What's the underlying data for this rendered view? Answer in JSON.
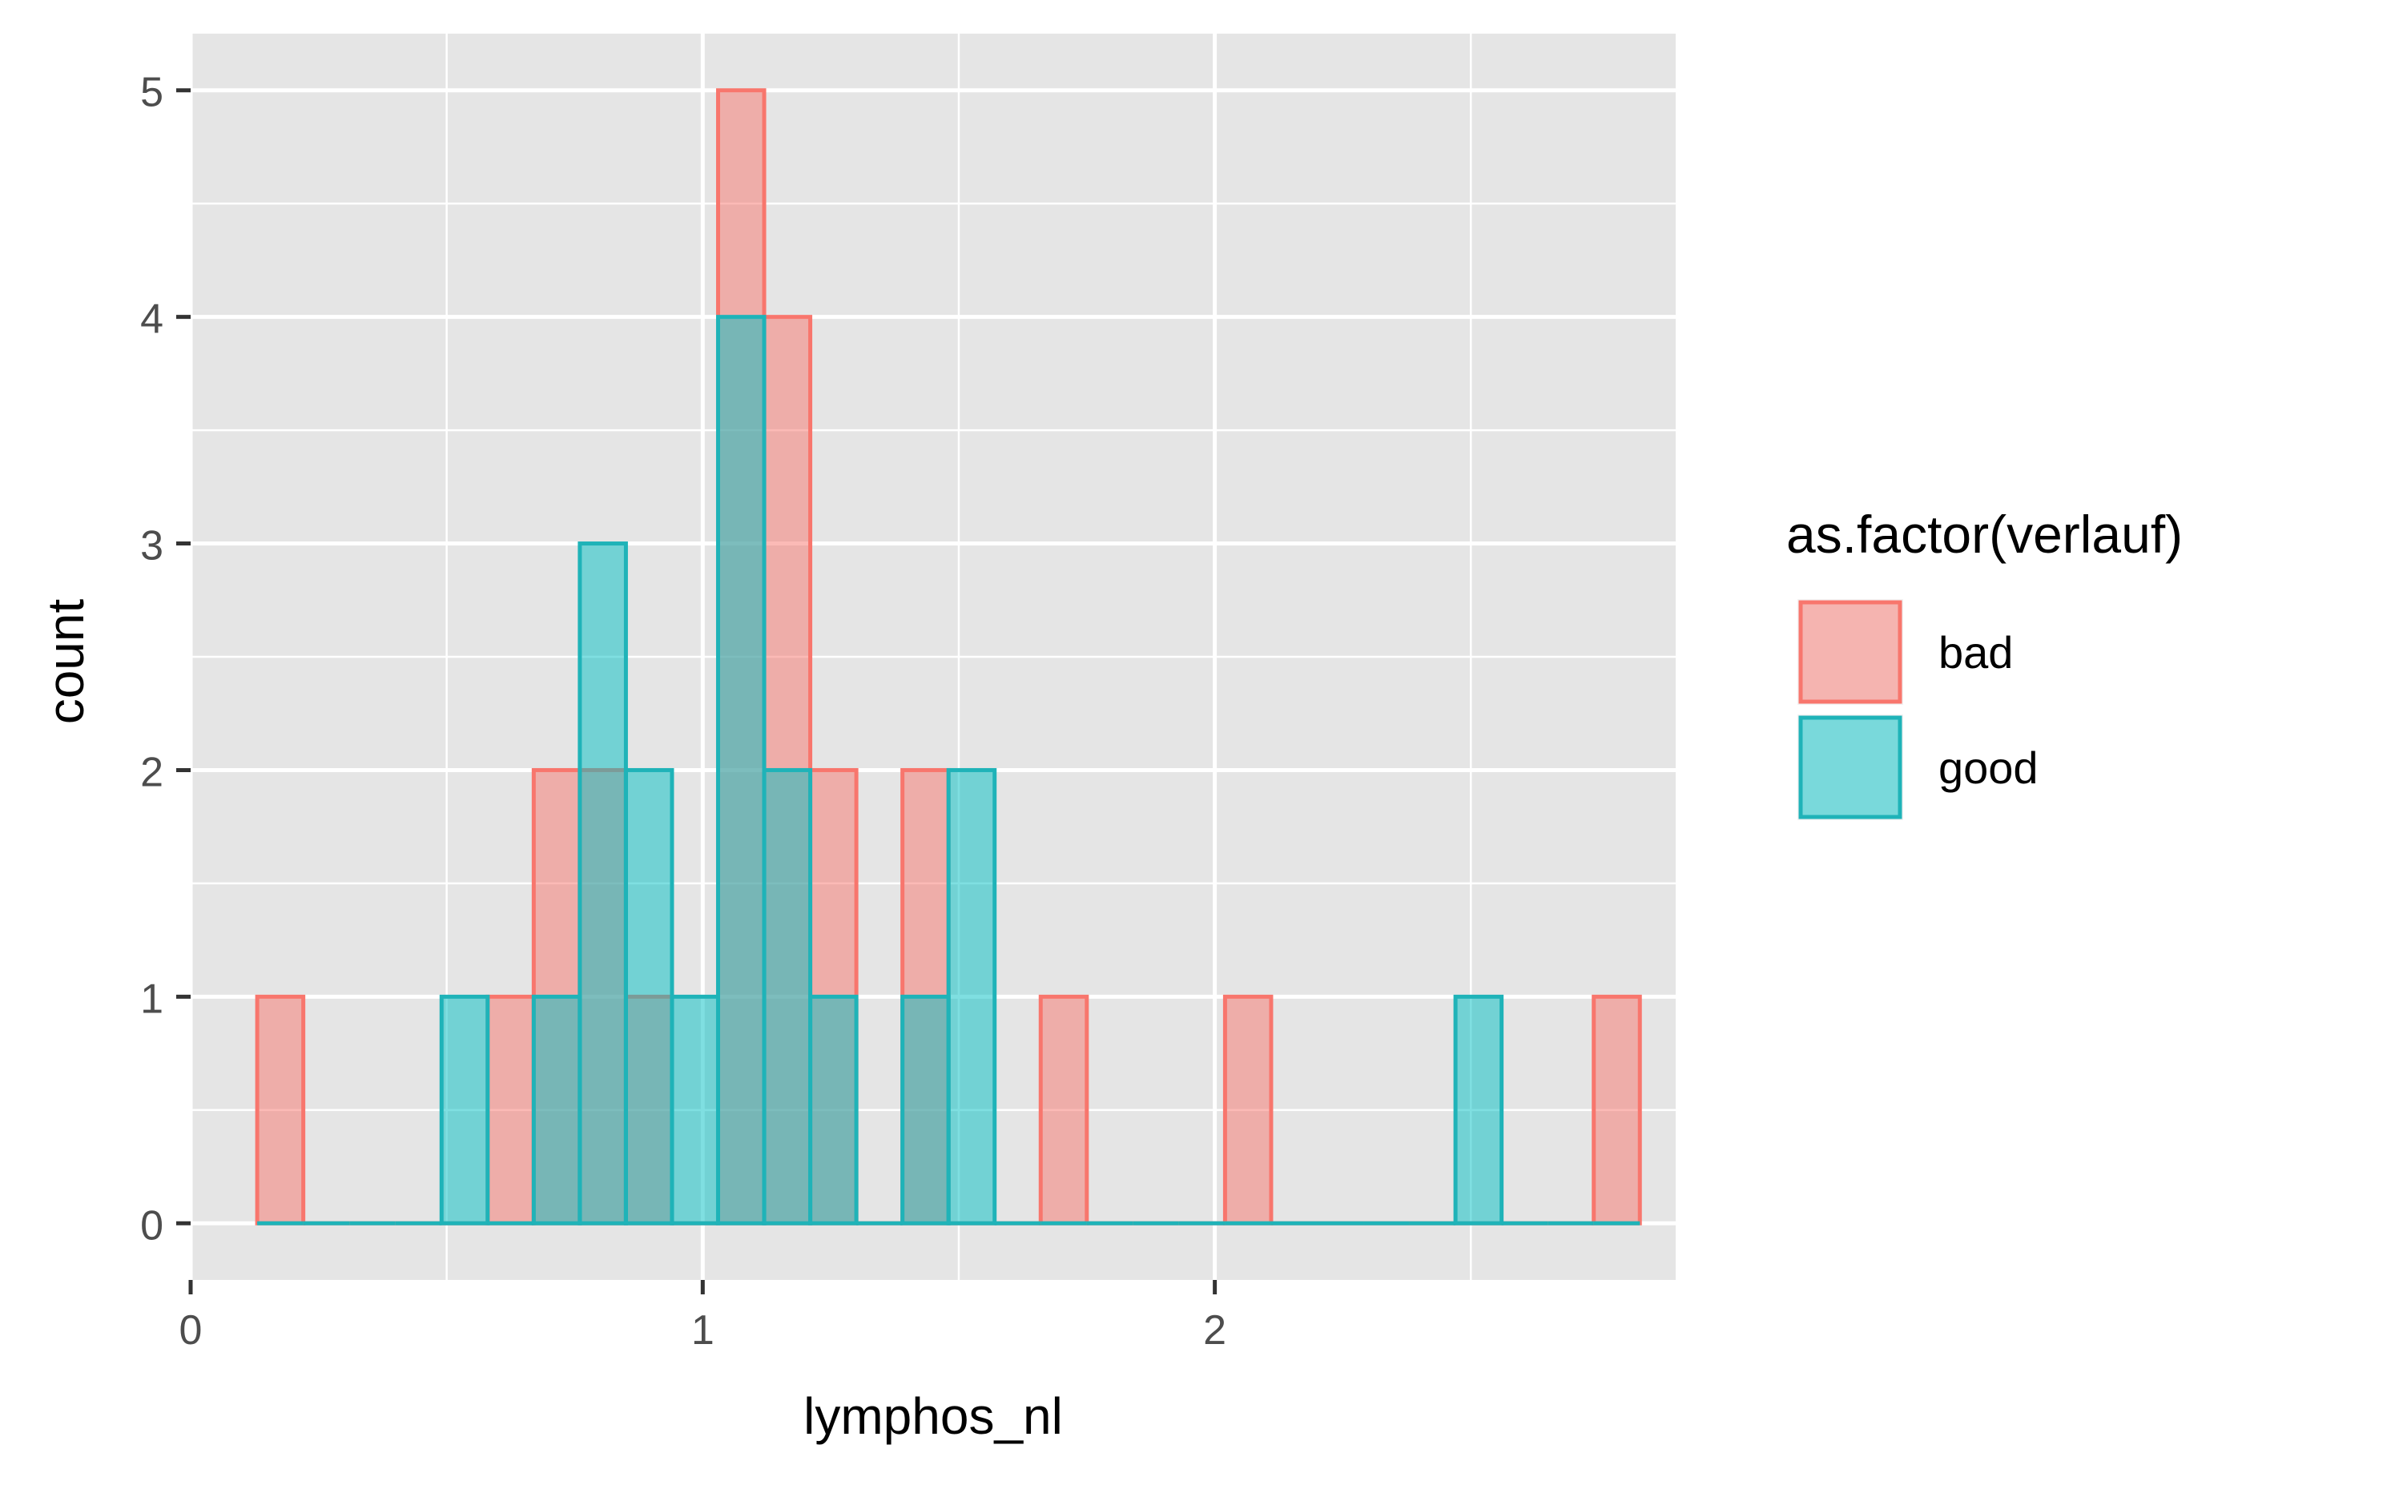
{
  "chart_data": {
    "type": "histogram",
    "xlabel": "lymphos_nl",
    "ylabel": "count",
    "xlim": [
      0,
      2.9
    ],
    "ylim": [
      -0.25,
      5.25
    ],
    "x_ticks": [
      0,
      1,
      2
    ],
    "x_tick_labels": [
      "0",
      "1",
      "2"
    ],
    "y_ticks": [
      0,
      1,
      2,
      3,
      4,
      5
    ],
    "y_tick_labels": [
      "0",
      "1",
      "2",
      "3",
      "4",
      "5"
    ],
    "bin_width": 0.09,
    "grid": true,
    "legend": {
      "title": "as.factor(verlauf)",
      "position": "right",
      "entries": [
        "bad",
        "good"
      ]
    },
    "series": [
      {
        "name": "bad",
        "fill": "#F8766D",
        "stroke": "#F8766D",
        "bins": [
          {
            "x0": 0.13,
            "x1": 0.22,
            "count": 1
          },
          {
            "x0": 0.22,
            "x1": 0.31,
            "count": 0
          },
          {
            "x0": 0.31,
            "x1": 0.4,
            "count": 0
          },
          {
            "x0": 0.4,
            "x1": 0.49,
            "count": 0
          },
          {
            "x0": 0.49,
            "x1": 0.58,
            "count": 0
          },
          {
            "x0": 0.58,
            "x1": 0.67,
            "count": 1
          },
          {
            "x0": 0.67,
            "x1": 0.76,
            "count": 2
          },
          {
            "x0": 0.76,
            "x1": 0.85,
            "count": 2
          },
          {
            "x0": 0.85,
            "x1": 0.94,
            "count": 1
          },
          {
            "x0": 0.94,
            "x1": 1.03,
            "count": 0
          },
          {
            "x0": 1.03,
            "x1": 1.12,
            "count": 5
          },
          {
            "x0": 1.12,
            "x1": 1.21,
            "count": 4
          },
          {
            "x0": 1.21,
            "x1": 1.3,
            "count": 2
          },
          {
            "x0": 1.3,
            "x1": 1.39,
            "count": 0
          },
          {
            "x0": 1.39,
            "x1": 1.48,
            "count": 2
          },
          {
            "x0": 1.48,
            "x1": 1.57,
            "count": 0
          },
          {
            "x0": 1.57,
            "x1": 1.66,
            "count": 0
          },
          {
            "x0": 1.66,
            "x1": 1.75,
            "count": 1
          },
          {
            "x0": 1.75,
            "x1": 1.84,
            "count": 0
          },
          {
            "x0": 1.84,
            "x1": 1.93,
            "count": 0
          },
          {
            "x0": 1.93,
            "x1": 2.02,
            "count": 0
          },
          {
            "x0": 2.02,
            "x1": 2.11,
            "count": 1
          },
          {
            "x0": 2.11,
            "x1": 2.2,
            "count": 0
          },
          {
            "x0": 2.2,
            "x1": 2.29,
            "count": 0
          },
          {
            "x0": 2.29,
            "x1": 2.38,
            "count": 0
          },
          {
            "x0": 2.38,
            "x1": 2.47,
            "count": 0
          },
          {
            "x0": 2.47,
            "x1": 2.56,
            "count": 0
          },
          {
            "x0": 2.56,
            "x1": 2.65,
            "count": 0
          },
          {
            "x0": 2.65,
            "x1": 2.74,
            "count": 0
          },
          {
            "x0": 2.74,
            "x1": 2.83,
            "count": 1
          }
        ]
      },
      {
        "name": "good",
        "fill": "#00BFC4",
        "stroke": "#1FB3B8",
        "bins": [
          {
            "x0": 0.13,
            "x1": 0.22,
            "count": 0
          },
          {
            "x0": 0.22,
            "x1": 0.31,
            "count": 0
          },
          {
            "x0": 0.31,
            "x1": 0.4,
            "count": 0
          },
          {
            "x0": 0.4,
            "x1": 0.49,
            "count": 0
          },
          {
            "x0": 0.49,
            "x1": 0.58,
            "count": 1
          },
          {
            "x0": 0.58,
            "x1": 0.67,
            "count": 0
          },
          {
            "x0": 0.67,
            "x1": 0.76,
            "count": 1
          },
          {
            "x0": 0.76,
            "x1": 0.85,
            "count": 3
          },
          {
            "x0": 0.85,
            "x1": 0.94,
            "count": 2
          },
          {
            "x0": 0.94,
            "x1": 1.03,
            "count": 1
          },
          {
            "x0": 1.03,
            "x1": 1.12,
            "count": 4
          },
          {
            "x0": 1.12,
            "x1": 1.21,
            "count": 2
          },
          {
            "x0": 1.21,
            "x1": 1.3,
            "count": 1
          },
          {
            "x0": 1.3,
            "x1": 1.39,
            "count": 0
          },
          {
            "x0": 1.39,
            "x1": 1.48,
            "count": 1
          },
          {
            "x0": 1.48,
            "x1": 1.57,
            "count": 2
          },
          {
            "x0": 1.57,
            "x1": 1.66,
            "count": 0
          },
          {
            "x0": 1.66,
            "x1": 1.75,
            "count": 0
          },
          {
            "x0": 1.75,
            "x1": 1.84,
            "count": 0
          },
          {
            "x0": 1.84,
            "x1": 1.93,
            "count": 0
          },
          {
            "x0": 1.93,
            "x1": 2.02,
            "count": 0
          },
          {
            "x0": 2.02,
            "x1": 2.11,
            "count": 0
          },
          {
            "x0": 2.11,
            "x1": 2.2,
            "count": 0
          },
          {
            "x0": 2.2,
            "x1": 2.29,
            "count": 0
          },
          {
            "x0": 2.29,
            "x1": 2.38,
            "count": 0
          },
          {
            "x0": 2.38,
            "x1": 2.47,
            "count": 0
          },
          {
            "x0": 2.47,
            "x1": 2.56,
            "count": 1
          },
          {
            "x0": 2.56,
            "x1": 2.65,
            "count": 0
          },
          {
            "x0": 2.65,
            "x1": 2.74,
            "count": 0
          },
          {
            "x0": 2.74,
            "x1": 2.83,
            "count": 0
          }
        ]
      }
    ]
  }
}
